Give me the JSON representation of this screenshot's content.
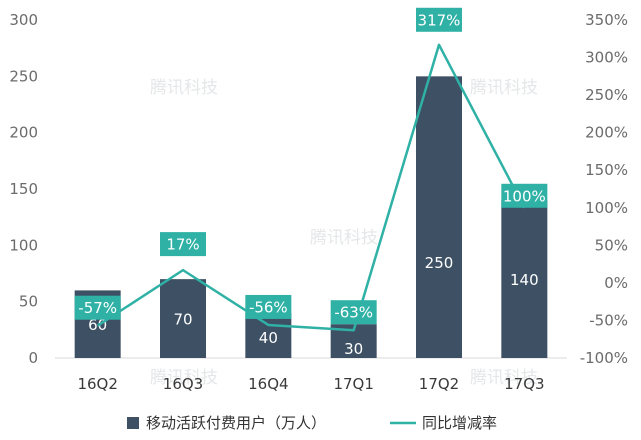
{
  "watermark": "腾讯科技",
  "chart_data": {
    "type": "bar",
    "categories": [
      "16Q2",
      "16Q3",
      "16Q4",
      "17Q1",
      "17Q2",
      "17Q3"
    ],
    "series": [
      {
        "name": "移动活跃付费用户（万人）",
        "type": "bar",
        "axis": "left",
        "values": [
          60,
          70,
          40,
          30,
          250,
          140
        ],
        "labels": [
          "60",
          "70",
          "40",
          "30",
          "250",
          "140"
        ],
        "color": "#3d5064"
      },
      {
        "name": "同比增减率",
        "type": "line",
        "axis": "right",
        "values": [
          -57,
          17,
          -56,
          -63,
          317,
          100
        ],
        "labels": [
          "-57%",
          "17%",
          "-56%",
          "-63%",
          "317%",
          "100%"
        ],
        "color": "#2fb1a6"
      }
    ],
    "y_left": {
      "min": 0,
      "max": 300,
      "ticks": [
        "0",
        "50",
        "100",
        "150",
        "200",
        "250",
        "300"
      ]
    },
    "y_right": {
      "min": -100,
      "max": 350,
      "ticks": [
        "-100%",
        "-50%",
        "0%",
        "50%",
        "100%",
        "150%",
        "200%",
        "250%",
        "300%",
        "350%"
      ]
    },
    "grid": false,
    "legend": "bottom"
  }
}
